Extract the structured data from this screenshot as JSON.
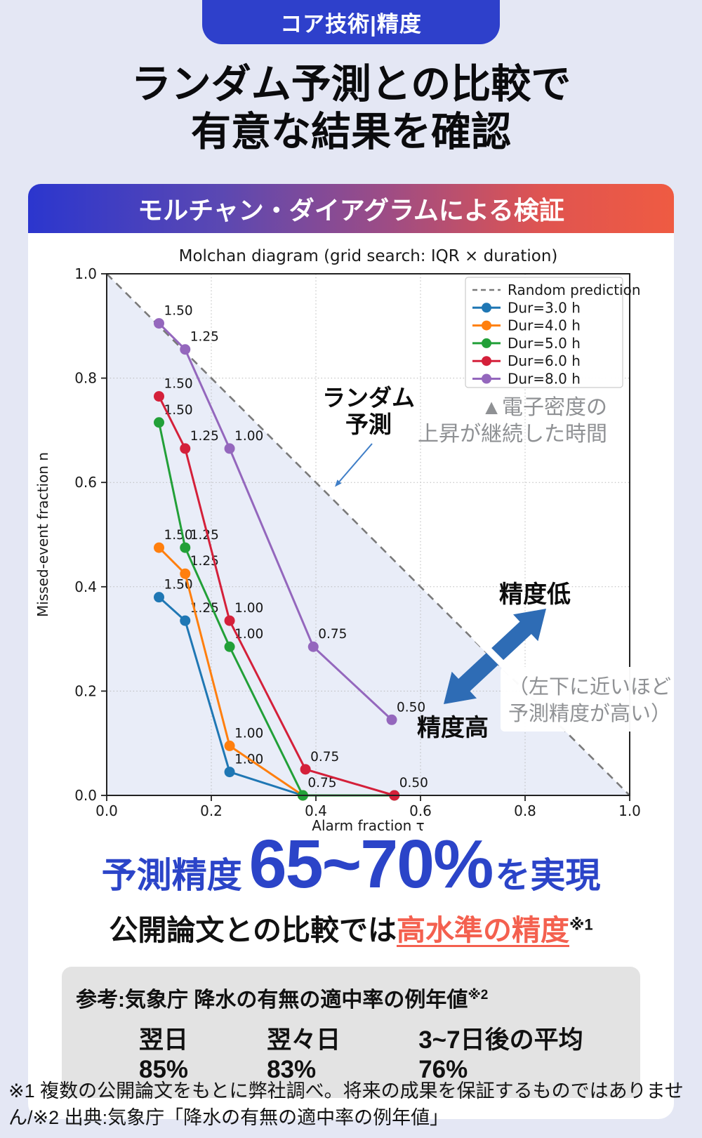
{
  "badge": {
    "label": "コア技術|精度"
  },
  "title": {
    "line1": "ランダム予測との比較で",
    "line2": "有意な結果を確認"
  },
  "banner": {
    "label": "モルチャン・ダイアグラムによる検証"
  },
  "colors": {
    "page_bg": "#e4e7f4",
    "badge_bg": "#2e40cb",
    "banner_gradient": [
      "#2b36ce",
      "#5b48b2",
      "#9c4c86",
      "#e05450",
      "#ef5b42"
    ],
    "card_bg": "#ffffff",
    "accent_blue": "#2b44c8",
    "accent_red": "#f4604f",
    "ref_box_bg": "#e3e3e3",
    "shade": "#e9edf8",
    "grid": "#b8b8b8",
    "dashed_line": "#7a7a7a",
    "big_arrow_blue": "#2e6cb5",
    "thin_arrow_blue": "#3f7ec7",
    "gray_annotation": "#8f9194",
    "frame": "#222222"
  },
  "chart_data": {
    "type": "line",
    "title": "Molchan diagram (grid search: IQR × duration)",
    "xlabel": "Alarm fraction τ",
    "ylabel": "Missed-event fraction n",
    "xlim": [
      0,
      1
    ],
    "ylim": [
      0,
      1
    ],
    "x_ticks": [
      "0.0",
      "0.2",
      "0.4",
      "0.6",
      "0.8",
      "1.0"
    ],
    "y_ticks": [
      "0.0",
      "0.2",
      "0.4",
      "0.6",
      "0.8",
      "1.0"
    ],
    "grid": true,
    "legend_position": "upper right",
    "random_line": {
      "label": "Random prediction",
      "color": "#7a7a7a",
      "from": [
        0,
        1
      ],
      "to": [
        1,
        0
      ]
    },
    "series": [
      {
        "name": "Dur=3.0 h",
        "color": "#1f77b4",
        "points": [
          {
            "x": 0.1,
            "y": 0.38,
            "label": "1.50"
          },
          {
            "x": 0.15,
            "y": 0.335,
            "label": "1.25"
          },
          {
            "x": 0.235,
            "y": 0.045,
            "label": "1.00"
          },
          {
            "x": 0.375,
            "y": 0.0,
            "label": null
          }
        ]
      },
      {
        "name": "Dur=4.0 h",
        "color": "#ff7f0e",
        "points": [
          {
            "x": 0.1,
            "y": 0.475,
            "label": "1.50"
          },
          {
            "x": 0.15,
            "y": 0.425,
            "label": "1.25"
          },
          {
            "x": 0.235,
            "y": 0.095,
            "label": "1.00"
          },
          {
            "x": 0.375,
            "y": 0.0,
            "label": null
          }
        ]
      },
      {
        "name": "Dur=5.0 h",
        "color": "#22a038",
        "points": [
          {
            "x": 0.1,
            "y": 0.715,
            "label": "1.50"
          },
          {
            "x": 0.15,
            "y": 0.475,
            "label": "1.25"
          },
          {
            "x": 0.235,
            "y": 0.285,
            "label": "1.00"
          },
          {
            "x": 0.375,
            "y": 0.0,
            "label": "0.75"
          },
          {
            "x": 0.55,
            "y": 0.0,
            "label": null
          }
        ]
      },
      {
        "name": "Dur=6.0 h",
        "color": "#d4203a",
        "points": [
          {
            "x": 0.1,
            "y": 0.765,
            "label": "1.50"
          },
          {
            "x": 0.15,
            "y": 0.665,
            "label": "1.25"
          },
          {
            "x": 0.235,
            "y": 0.335,
            "label": "1.00"
          },
          {
            "x": 0.38,
            "y": 0.05,
            "label": "0.75"
          },
          {
            "x": 0.55,
            "y": 0.0,
            "label": "0.50"
          }
        ]
      },
      {
        "name": "Dur=8.0 h",
        "color": "#9467bd",
        "points": [
          {
            "x": 0.1,
            "y": 0.905,
            "label": "1.50"
          },
          {
            "x": 0.15,
            "y": 0.855,
            "label": "1.25"
          },
          {
            "x": 0.235,
            "y": 0.665,
            "label": "1.00"
          },
          {
            "x": 0.395,
            "y": 0.285,
            "label": "0.75"
          },
          {
            "x": 0.545,
            "y": 0.145,
            "label": "0.50"
          }
        ]
      }
    ],
    "annotations": {
      "random_label_line1": "ランダム",
      "random_label_line2": "予測",
      "density_note_line1": "▲電子密度の",
      "density_note_line2": "上昇が継続した時間",
      "low_accuracy": "精度低",
      "high_accuracy": "精度高",
      "corner_note_line1": "（左下に近いほど",
      "corner_note_line2": "予測精度が高い）"
    }
  },
  "result": {
    "prefix": "予測精度",
    "value": "65~70%",
    "suffix": "を実現"
  },
  "comparison": {
    "black": "公開論文との比較では",
    "red": "高水準の精度",
    "sup": "※1"
  },
  "reference_box": {
    "line1": "参考:気象庁 降水の有無の適中率の例年値",
    "line1_sup": "※2",
    "stat1": "翌日85%",
    "stat2": "翌々日83%",
    "stat3": "3~7日後の平均76%"
  },
  "footnote": "※1 複数の公開論文をもとに弊社調べ。将来の成果を保証するものではありません/※2 出典:気象庁「降水の有無の適中率の例年値」"
}
